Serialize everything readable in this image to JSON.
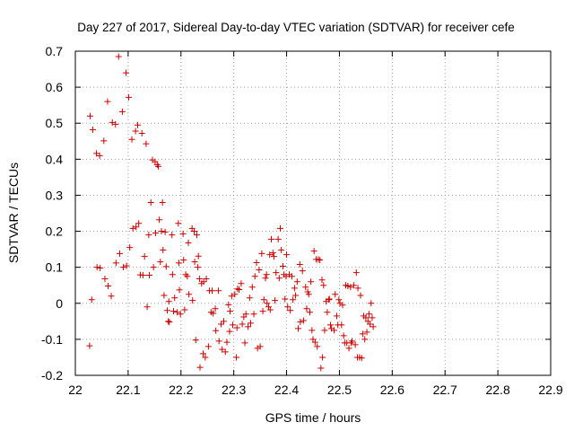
{
  "chart_data": {
    "type": "scatter",
    "title": "Day 227 of 2017, Sidereal Day-to-day VTEC variation (SDTVAR) for receiver cefe",
    "xlabel": "GPS time / hours",
    "ylabel": "SDTVAR / TECUs",
    "xlim": [
      22.0,
      22.9
    ],
    "ylim": [
      -0.2,
      0.7
    ],
    "grid": true,
    "marker": "+",
    "color": "#cc0000",
    "x_ticks": [
      "22",
      "22.1",
      "22.2",
      "22.3",
      "22.4",
      "22.5",
      "22.6",
      "22.7",
      "22.8",
      "22.9"
    ],
    "y_ticks": [
      "-0.2",
      "-0.1",
      "0",
      "0.1",
      "0.2",
      "0.3",
      "0.4",
      "0.5",
      "0.6",
      "0.7"
    ],
    "series": [
      {
        "name": "SDTVAR",
        "points": [
          [
            22.027,
            -0.118
          ],
          [
            22.028,
            0.52
          ],
          [
            22.031,
            0.01
          ],
          [
            22.033,
            0.482
          ],
          [
            22.04,
            0.416
          ],
          [
            22.041,
            0.1
          ],
          [
            22.046,
            0.41
          ],
          [
            22.047,
            0.098
          ],
          [
            22.054,
            0.451
          ],
          [
            22.056,
            0.068
          ],
          [
            22.061,
            0.56
          ],
          [
            22.062,
            0.048
          ],
          [
            22.068,
            0.02
          ],
          [
            22.07,
            0.502
          ],
          [
            22.076,
            0.497
          ],
          [
            22.077,
            0.112
          ],
          [
            22.082,
            0.685
          ],
          [
            22.084,
            0.138
          ],
          [
            22.089,
            0.532
          ],
          [
            22.091,
            0.1
          ],
          [
            22.096,
            0.64
          ],
          [
            22.097,
            0.104
          ],
          [
            22.101,
            0.572
          ],
          [
            22.103,
            0.155
          ],
          [
            22.107,
            0.455
          ],
          [
            22.109,
            0.208
          ],
          [
            22.114,
            0.478
          ],
          [
            22.115,
            0.212
          ],
          [
            22.118,
            0.495
          ],
          [
            22.12,
            0.222
          ],
          [
            22.123,
            0.079
          ],
          [
            22.126,
            0.472
          ],
          [
            22.128,
            0.078
          ],
          [
            22.131,
            0.13
          ],
          [
            22.134,
            0.443
          ],
          [
            22.136,
            -0.01
          ],
          [
            22.139,
            0.19
          ],
          [
            22.14,
            0.078
          ],
          [
            22.143,
            0.28
          ],
          [
            22.146,
            0.398
          ],
          [
            22.148,
            0.1
          ],
          [
            22.151,
            0.393
          ],
          [
            22.152,
            0.195
          ],
          [
            22.155,
            0.385
          ],
          [
            22.157,
            0.38
          ],
          [
            22.159,
            0.232
          ],
          [
            22.161,
            0.115
          ],
          [
            22.163,
            0.2
          ],
          [
            22.165,
            0.28
          ],
          [
            22.166,
            0.148
          ],
          [
            22.168,
            0.022
          ],
          [
            22.17,
            0.198
          ],
          [
            22.172,
            0.102
          ],
          [
            22.174,
            -0.02
          ],
          [
            22.176,
            -0.05
          ],
          [
            22.177,
            0.005
          ],
          [
            22.178,
            -0.052
          ],
          [
            22.183,
            0.19
          ],
          [
            22.184,
            0.08
          ],
          [
            22.186,
            -0.022
          ],
          [
            22.188,
            0.015
          ],
          [
            22.193,
            -0.025
          ],
          [
            22.195,
            0.222
          ],
          [
            22.196,
            0.112
          ],
          [
            22.197,
            0.037
          ],
          [
            22.199,
            -0.03
          ],
          [
            22.204,
            0.193
          ],
          [
            22.205,
            0.12
          ],
          [
            22.207,
            -0.018
          ],
          [
            22.209,
            0.08
          ],
          [
            22.212,
            0.075
          ],
          [
            22.214,
            0.168
          ],
          [
            22.215,
            0.025
          ],
          [
            22.221,
            0.208
          ],
          [
            22.222,
            0.008
          ],
          [
            22.225,
            0.2
          ],
          [
            22.226,
            0.115
          ],
          [
            22.228,
            -0.102
          ],
          [
            22.23,
            0.19
          ],
          [
            22.232,
            0.1
          ],
          [
            22.233,
            0.131
          ],
          [
            22.235,
            0.068
          ],
          [
            22.236,
            -0.178
          ],
          [
            22.239,
            0.055
          ],
          [
            22.242,
            -0.14
          ],
          [
            22.243,
            0.06
          ],
          [
            22.246,
            -0.15
          ],
          [
            22.248,
            0.068
          ],
          [
            22.252,
            -0.12
          ],
          [
            22.254,
            0.035
          ],
          [
            22.257,
            -0.025
          ],
          [
            22.259,
            0.035
          ],
          [
            22.261,
            -0.028
          ],
          [
            22.265,
            -0.015
          ],
          [
            22.266,
            -0.076
          ],
          [
            22.271,
            0.035
          ],
          [
            22.272,
            -0.105
          ],
          [
            22.276,
            -0.058
          ],
          [
            22.278,
            -0.128
          ],
          [
            22.281,
            -0.05
          ],
          [
            22.284,
            -0.135
          ],
          [
            22.287,
            -0.108
          ],
          [
            22.29,
            -0.004
          ],
          [
            22.292,
            -0.078
          ],
          [
            22.293,
            -0.022
          ],
          [
            22.296,
            0.02
          ],
          [
            22.298,
            -0.06
          ],
          [
            22.302,
            0.025
          ],
          [
            22.305,
            -0.15
          ],
          [
            22.306,
            -0.068
          ],
          [
            22.307,
            0.04
          ],
          [
            22.31,
            0.038
          ],
          [
            22.314,
            0.055
          ],
          [
            22.316,
            -0.058
          ],
          [
            22.319,
            -0.038
          ],
          [
            22.321,
            -0.11
          ],
          [
            22.323,
            -0.03
          ],
          [
            22.327,
            -0.065
          ],
          [
            22.33,
            0.015
          ],
          [
            22.332,
            -0.055
          ],
          [
            22.335,
            0.045
          ],
          [
            22.338,
            -0.03
          ],
          [
            22.34,
            0.075
          ],
          [
            22.343,
            0.113
          ],
          [
            22.345,
            -0.125
          ],
          [
            22.348,
            0.093
          ],
          [
            22.35,
            -0.12
          ],
          [
            22.353,
            0.138
          ],
          [
            22.355,
            -0.022
          ],
          [
            22.357,
            0.01
          ],
          [
            22.36,
            0.07
          ],
          [
            22.362,
            0.08
          ],
          [
            22.363,
            0.0
          ],
          [
            22.366,
            -0.01
          ],
          [
            22.368,
            0.135
          ],
          [
            22.369,
            -0.018
          ],
          [
            22.371,
            0.178
          ],
          [
            22.374,
            0.14
          ],
          [
            22.376,
            0.13
          ],
          [
            22.378,
            0.008
          ],
          [
            22.38,
            0.085
          ],
          [
            22.384,
            0.178
          ],
          [
            22.386,
            0.07
          ],
          [
            22.388,
            0.208
          ],
          [
            22.39,
            0.148
          ],
          [
            22.393,
            0.103
          ],
          [
            22.395,
            0.08
          ],
          [
            22.397,
            0.012
          ],
          [
            22.399,
            0.075
          ],
          [
            22.4,
            0.135
          ],
          [
            22.402,
            -0.01
          ],
          [
            22.405,
            0.08
          ],
          [
            22.407,
            -0.02
          ],
          [
            22.41,
            0.075
          ],
          [
            22.412,
            0.01
          ],
          [
            22.415,
            0.042
          ],
          [
            22.417,
            0.022
          ],
          [
            22.42,
            0.06
          ],
          [
            22.422,
            -0.07
          ],
          [
            22.425,
            0.108
          ],
          [
            22.426,
            -0.052
          ],
          [
            22.43,
            0.09
          ],
          [
            22.432,
            -0.048
          ],
          [
            22.436,
            0.045
          ],
          [
            22.438,
            -0.015
          ],
          [
            22.44,
            0.032
          ],
          [
            22.442,
            0.025
          ],
          [
            22.444,
            -0.025
          ],
          [
            22.446,
            0.06
          ],
          [
            22.448,
            -0.075
          ],
          [
            22.45,
            -0.1
          ],
          [
            22.452,
            0.145
          ],
          [
            22.454,
            -0.108
          ],
          [
            22.456,
            0.122
          ],
          [
            22.458,
            -0.12
          ],
          [
            22.46,
            0.122
          ],
          [
            22.463,
            0.12
          ],
          [
            22.465,
            -0.18
          ],
          [
            22.467,
            0.065
          ],
          [
            22.468,
            -0.15
          ],
          [
            22.47,
            0.05
          ],
          [
            22.472,
            -0.075
          ],
          [
            22.475,
            0.005
          ],
          [
            22.477,
            -0.025
          ],
          [
            22.48,
            0.01
          ],
          [
            22.481,
            0.012
          ],
          [
            22.483,
            -0.06
          ],
          [
            22.485,
            -0.07
          ],
          [
            22.49,
            -0.075
          ],
          [
            22.492,
            0.025
          ],
          [
            22.495,
            -0.035
          ],
          [
            22.497,
            -0.06
          ],
          [
            22.499,
            0.01
          ],
          [
            22.501,
            0.0
          ],
          [
            22.504,
            -0.06
          ],
          [
            22.506,
            -0.005
          ],
          [
            22.508,
            -0.09
          ],
          [
            22.51,
            -0.11
          ],
          [
            22.512,
            0.05
          ],
          [
            22.514,
            -0.11
          ],
          [
            22.516,
            0.048
          ],
          [
            22.518,
            -0.125
          ],
          [
            22.521,
            0.045
          ],
          [
            22.522,
            -0.11
          ],
          [
            22.524,
            -0.105
          ],
          [
            22.527,
            0.05
          ],
          [
            22.53,
            -0.115
          ],
          [
            22.532,
            0.085
          ],
          [
            22.534,
            -0.15
          ],
          [
            22.535,
            0.042
          ],
          [
            22.538,
            -0.15
          ],
          [
            22.54,
            0.022
          ],
          [
            22.542,
            -0.152
          ],
          [
            22.544,
            -0.085
          ],
          [
            22.546,
            -0.035
          ],
          [
            22.548,
            -0.1
          ],
          [
            22.55,
            -0.04
          ],
          [
            22.552,
            -0.08
          ],
          [
            22.554,
            -0.05
          ],
          [
            22.556,
            -0.03
          ],
          [
            22.558,
            -0.058
          ],
          [
            22.56,
            0.0
          ],
          [
            22.562,
            -0.04
          ],
          [
            22.564,
            -0.065
          ]
        ]
      }
    ]
  }
}
